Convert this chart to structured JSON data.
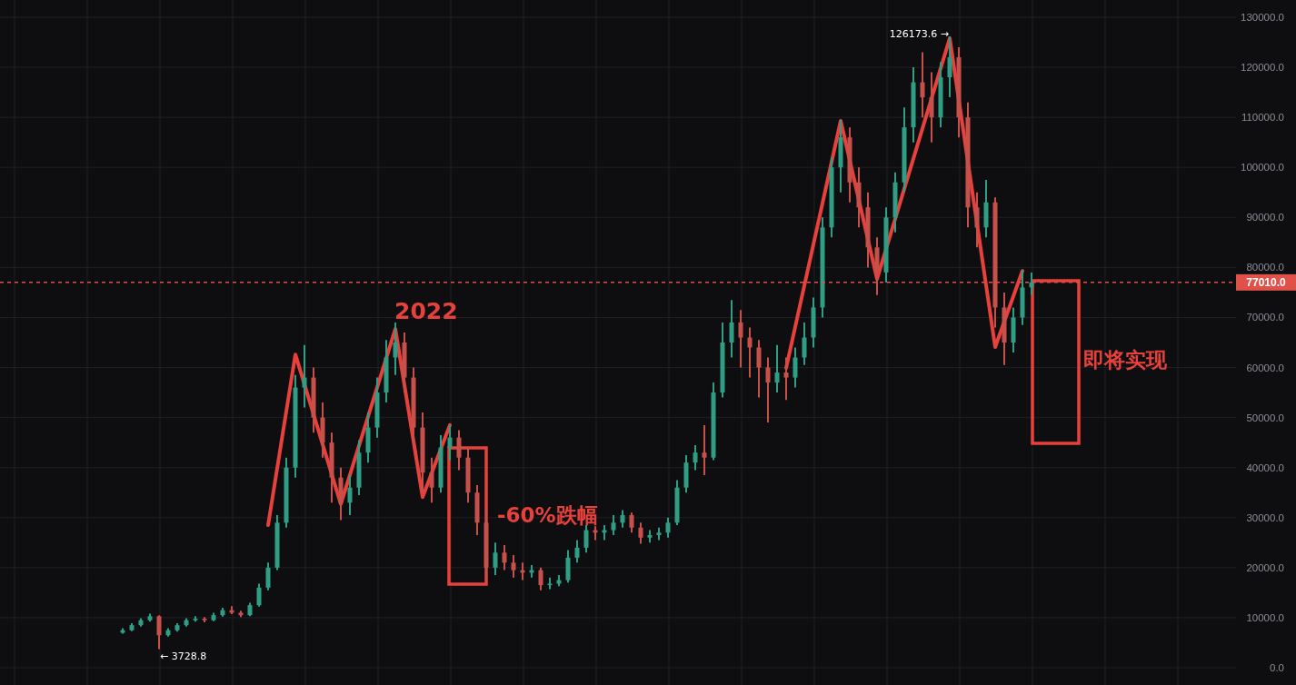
{
  "chart_data": {
    "type": "candlestick",
    "categories": [
      null,
      null,
      null,
      null,
      null,
      null,
      null,
      null,
      null,
      null,
      null,
      null,
      null,
      null,
      null,
      null,
      null,
      null,
      null,
      null,
      null,
      null,
      null,
      null,
      null,
      null,
      null,
      null,
      null,
      null,
      null,
      null,
      null,
      null,
      null,
      null,
      null,
      null,
      null,
      null,
      null,
      null,
      null,
      null,
      null,
      null,
      null,
      null,
      null,
      null,
      null,
      null,
      null,
      null,
      null,
      null,
      null,
      null,
      null,
      null,
      null,
      null,
      null,
      null,
      null,
      null,
      null,
      null,
      null,
      null,
      null,
      null,
      null,
      null,
      null,
      null,
      null,
      null,
      null,
      null,
      null,
      null,
      null,
      null,
      null,
      null,
      null,
      null,
      null,
      null,
      null,
      null,
      null,
      null,
      null,
      null,
      null,
      null,
      null,
      null,
      null,
      null,
      null,
      null,
      null,
      null,
      null,
      null,
      null,
      null,
      null,
      null,
      null,
      null,
      null,
      null,
      null,
      null,
      null,
      null,
      null,
      null,
      null,
      null,
      null,
      null,
      null,
      null,
      null,
      null,
      null,
      null,
      null,
      null,
      null,
      null
    ],
    "ohlc": [
      null,
      null,
      null,
      null,
      null,
      null,
      null,
      null,
      null,
      null,
      null,
      null,
      null,
      [
        7000,
        7900,
        6800,
        7500
      ],
      [
        7500,
        8900,
        7300,
        8500
      ],
      [
        8500,
        9900,
        8200,
        9500
      ],
      [
        9500,
        10800,
        9200,
        10300
      ],
      [
        10300,
        10500,
        3728.8,
        6500
      ],
      [
        6500,
        7900,
        6200,
        7500
      ],
      [
        7500,
        8900,
        7200,
        8500
      ],
      [
        8500,
        9900,
        8200,
        9500
      ],
      [
        9500,
        10300,
        9200,
        9800
      ],
      [
        9800,
        10100,
        9100,
        9500
      ],
      [
        9500,
        11000,
        9300,
        10500
      ],
      [
        10500,
        12000,
        10200,
        11500
      ],
      [
        11500,
        12300,
        10700,
        11000
      ],
      [
        11000,
        11400,
        10100,
        10500
      ],
      [
        10500,
        13000,
        10300,
        12500
      ],
      [
        12500,
        16800,
        12200,
        16000
      ],
      [
        16000,
        21000,
        15500,
        20000
      ],
      [
        20000,
        30500,
        19500,
        29000
      ],
      [
        29000,
        42000,
        28000,
        40000
      ],
      [
        40000,
        58500,
        38000,
        56000
      ],
      [
        56000,
        64500,
        52000,
        58000
      ],
      [
        58000,
        60000,
        47000,
        50000
      ],
      [
        50000,
        53000,
        42000,
        45000
      ],
      [
        45000,
        47000,
        33000,
        38000
      ],
      [
        38000,
        40000,
        29500,
        33000
      ],
      [
        33000,
        38500,
        30500,
        36000
      ],
      [
        36000,
        45500,
        34500,
        43000
      ],
      [
        43000,
        51000,
        41000,
        48000
      ],
      [
        48000,
        58000,
        46000,
        55000
      ],
      [
        55000,
        65500,
        53000,
        62000
      ],
      [
        62000,
        69000,
        58500,
        65000
      ],
      [
        65000,
        67000,
        55000,
        58000
      ],
      [
        58000,
        60000,
        45000,
        48000
      ],
      [
        48000,
        51000,
        35000,
        39000
      ],
      [
        39000,
        42000,
        33000,
        36000
      ],
      [
        36000,
        46500,
        35000,
        44000
      ],
      [
        44000,
        48500,
        41500,
        46000
      ],
      [
        46000,
        47500,
        39500,
        42000
      ],
      [
        42000,
        44000,
        33000,
        35000
      ],
      [
        35000,
        36500,
        26500,
        29000
      ],
      [
        29000,
        32000,
        17600,
        20000
      ],
      [
        20000,
        25000,
        18500,
        23000
      ],
      [
        23000,
        24500,
        19500,
        21000
      ],
      [
        21000,
        22500,
        18000,
        19500
      ],
      [
        19500,
        21000,
        17500,
        19000
      ],
      [
        19000,
        20500,
        18000,
        19500
      ],
      [
        19500,
        20000,
        15500,
        16500
      ],
      [
        16500,
        18000,
        15700,
        16800
      ],
      [
        16800,
        18500,
        16300,
        17500
      ],
      [
        17500,
        23500,
        17000,
        22000
      ],
      [
        22000,
        25500,
        21000,
        24000
      ],
      [
        24000,
        28500,
        23000,
        27500
      ],
      [
        27500,
        28300,
        25500,
        27000
      ],
      [
        27000,
        28500,
        25500,
        27500
      ],
      [
        27500,
        30500,
        26500,
        29000
      ],
      [
        29000,
        31500,
        28000,
        30500
      ],
      [
        30500,
        31000,
        27000,
        28000
      ],
      [
        28000,
        29000,
        24800,
        26000
      ],
      [
        26000,
        27500,
        25000,
        26500
      ],
      [
        26500,
        28000,
        25500,
        27000
      ],
      [
        27000,
        30000,
        26000,
        29000
      ],
      [
        29000,
        37500,
        28500,
        36000
      ],
      [
        36000,
        42500,
        35000,
        41000
      ],
      [
        41000,
        44500,
        39500,
        43000
      ],
      [
        43000,
        48500,
        38500,
        42000
      ],
      [
        42000,
        57000,
        41500,
        55000
      ],
      [
        55000,
        69000,
        54000,
        65000
      ],
      [
        65000,
        73500,
        62000,
        69000
      ],
      [
        69000,
        71500,
        60000,
        66000
      ],
      [
        66000,
        68000,
        58000,
        64000
      ],
      [
        64000,
        65500,
        54000,
        60000
      ],
      [
        60000,
        62000,
        49000,
        57000
      ],
      [
        57000,
        64500,
        55000,
        59000
      ],
      [
        59000,
        62000,
        53500,
        58000
      ],
      [
        58000,
        64000,
        56000,
        62000
      ],
      [
        62000,
        69000,
        60500,
        66000
      ],
      [
        66000,
        74000,
        64000,
        72000
      ],
      [
        72000,
        90000,
        70000,
        88000
      ],
      [
        88000,
        102000,
        86000,
        100000
      ],
      [
        100000,
        109500,
        95000,
        106000
      ],
      [
        106000,
        108000,
        93000,
        97000
      ],
      [
        97000,
        100000,
        88000,
        92000
      ],
      [
        92000,
        95000,
        80000,
        84000
      ],
      [
        84000,
        86000,
        74500,
        79000
      ],
      [
        79000,
        92000,
        77000,
        90000
      ],
      [
        90000,
        99000,
        87000,
        97000
      ],
      [
        97000,
        112000,
        95000,
        108000
      ],
      [
        108000,
        120000,
        105000,
        117000
      ],
      [
        117000,
        123000,
        110000,
        114000
      ],
      [
        114000,
        119000,
        105000,
        110000
      ],
      [
        110000,
        121000,
        108000,
        118000
      ],
      [
        118000,
        126173.6,
        114000,
        122000
      ],
      [
        122000,
        124000,
        106000,
        110000
      ],
      [
        110000,
        113000,
        88000,
        92000
      ],
      [
        92000,
        95000,
        84000,
        88000
      ],
      [
        88000,
        97500,
        86000,
        93000
      ],
      [
        93000,
        94000,
        68000,
        72000
      ],
      [
        72000,
        75000,
        60500,
        65000
      ],
      [
        65000,
        72000,
        63000,
        70000
      ],
      [
        70000,
        79500,
        68500,
        76000
      ],
      [
        76000,
        79000,
        74500,
        77010
      ],
      null,
      null,
      null,
      null,
      null,
      null,
      null,
      null,
      null,
      null,
      null,
      null,
      null,
      null,
      null,
      null,
      null,
      null,
      null,
      null,
      null,
      null
    ],
    "series": [
      {
        "type": "line",
        "color": "#e8413c",
        "values": [
          null,
          null,
          null,
          null,
          null,
          null,
          null,
          null,
          null,
          null,
          null,
          null,
          null,
          null,
          null,
          null,
          null,
          null,
          null,
          null,
          null,
          null,
          null,
          null,
          null,
          null,
          null,
          null,
          null,
          28500,
          null,
          null,
          62600,
          null,
          null,
          null,
          null,
          32700,
          null,
          null,
          null,
          null,
          null,
          67700,
          null,
          null,
          34100,
          null,
          null,
          48500,
          null,
          null,
          null,
          null,
          null,
          null,
          null,
          null,
          null,
          null,
          null,
          null,
          null,
          null,
          null,
          null,
          null,
          null,
          null,
          null,
          null,
          null,
          null,
          null,
          null,
          null,
          null,
          null,
          null,
          null,
          null,
          null,
          null,
          null,
          null,
          null,
          null,
          null,
          null,
          null,
          null,
          null,
          null,
          null,
          null,
          null,
          null,
          null,
          null,
          null,
          null,
          null,
          null,
          null,
          null,
          null,
          null,
          null,
          null,
          null,
          null,
          null,
          null,
          null,
          null,
          null,
          null,
          null,
          null,
          null,
          null,
          null,
          null,
          null,
          null,
          null,
          null,
          null,
          null,
          null,
          null,
          null,
          null,
          null,
          null,
          null
        ]
      },
      {
        "type": "line",
        "color": "#e8413c",
        "values": [
          null,
          null,
          null,
          null,
          null,
          null,
          null,
          null,
          null,
          null,
          null,
          null,
          null,
          null,
          null,
          null,
          null,
          null,
          null,
          null,
          null,
          null,
          null,
          null,
          null,
          null,
          null,
          null,
          null,
          null,
          null,
          null,
          null,
          null,
          null,
          null,
          null,
          null,
          null,
          null,
          null,
          null,
          null,
          null,
          null,
          null,
          null,
          null,
          null,
          null,
          null,
          null,
          null,
          null,
          null,
          null,
          null,
          null,
          null,
          null,
          null,
          null,
          null,
          null,
          null,
          null,
          null,
          null,
          null,
          null,
          null,
          null,
          null,
          null,
          null,
          null,
          null,
          null,
          null,
          null,
          null,
          null,
          null,
          null,
          null,
          null,
          59900,
          null,
          null,
          null,
          null,
          null,
          109300,
          null,
          null,
          null,
          77700,
          null,
          null,
          null,
          null,
          null,
          null,
          null,
          125800,
          null,
          null,
          null,
          null,
          64100,
          null,
          null,
          79300,
          null,
          null,
          null,
          null,
          null,
          null,
          null,
          null,
          null,
          null,
          null,
          null,
          null,
          null,
          null,
          null,
          null,
          null,
          null,
          null,
          null,
          null,
          null
        ]
      }
    ],
    "ylim": [
      -3450,
      133450
    ],
    "yticks": [
      {
        "value": 0,
        "label": "0.0"
      },
      {
        "value": 10000,
        "label": "10000.0"
      },
      {
        "value": 20000,
        "label": "20000.0"
      },
      {
        "value": 30000,
        "label": "30000.0"
      },
      {
        "value": 40000,
        "label": "40000.0"
      },
      {
        "value": 50000,
        "label": "50000.0"
      },
      {
        "value": 60000,
        "label": "60000.0"
      },
      {
        "value": 70000,
        "label": "70000.0"
      },
      {
        "value": 80000,
        "label": "80000.0"
      },
      {
        "value": 90000,
        "label": "90000.0"
      },
      {
        "value": 100000,
        "label": "100000.0"
      },
      {
        "value": 110000,
        "label": "110000.0"
      },
      {
        "value": 120000,
        "label": "120000.0"
      },
      {
        "value": 130000,
        "label": "130000.0"
      }
    ],
    "tick_labels": "y",
    "grid": true,
    "ref_lines": [
      {
        "axis": "y",
        "value": 77010,
        "label": "77010.0",
        "color": "#e0514a",
        "line_style": "dashed"
      }
    ],
    "annotations": [
      "2022",
      "-60%跌幅",
      "即将实现",
      "126173.6 →",
      "← 3728.8"
    ]
  }
}
